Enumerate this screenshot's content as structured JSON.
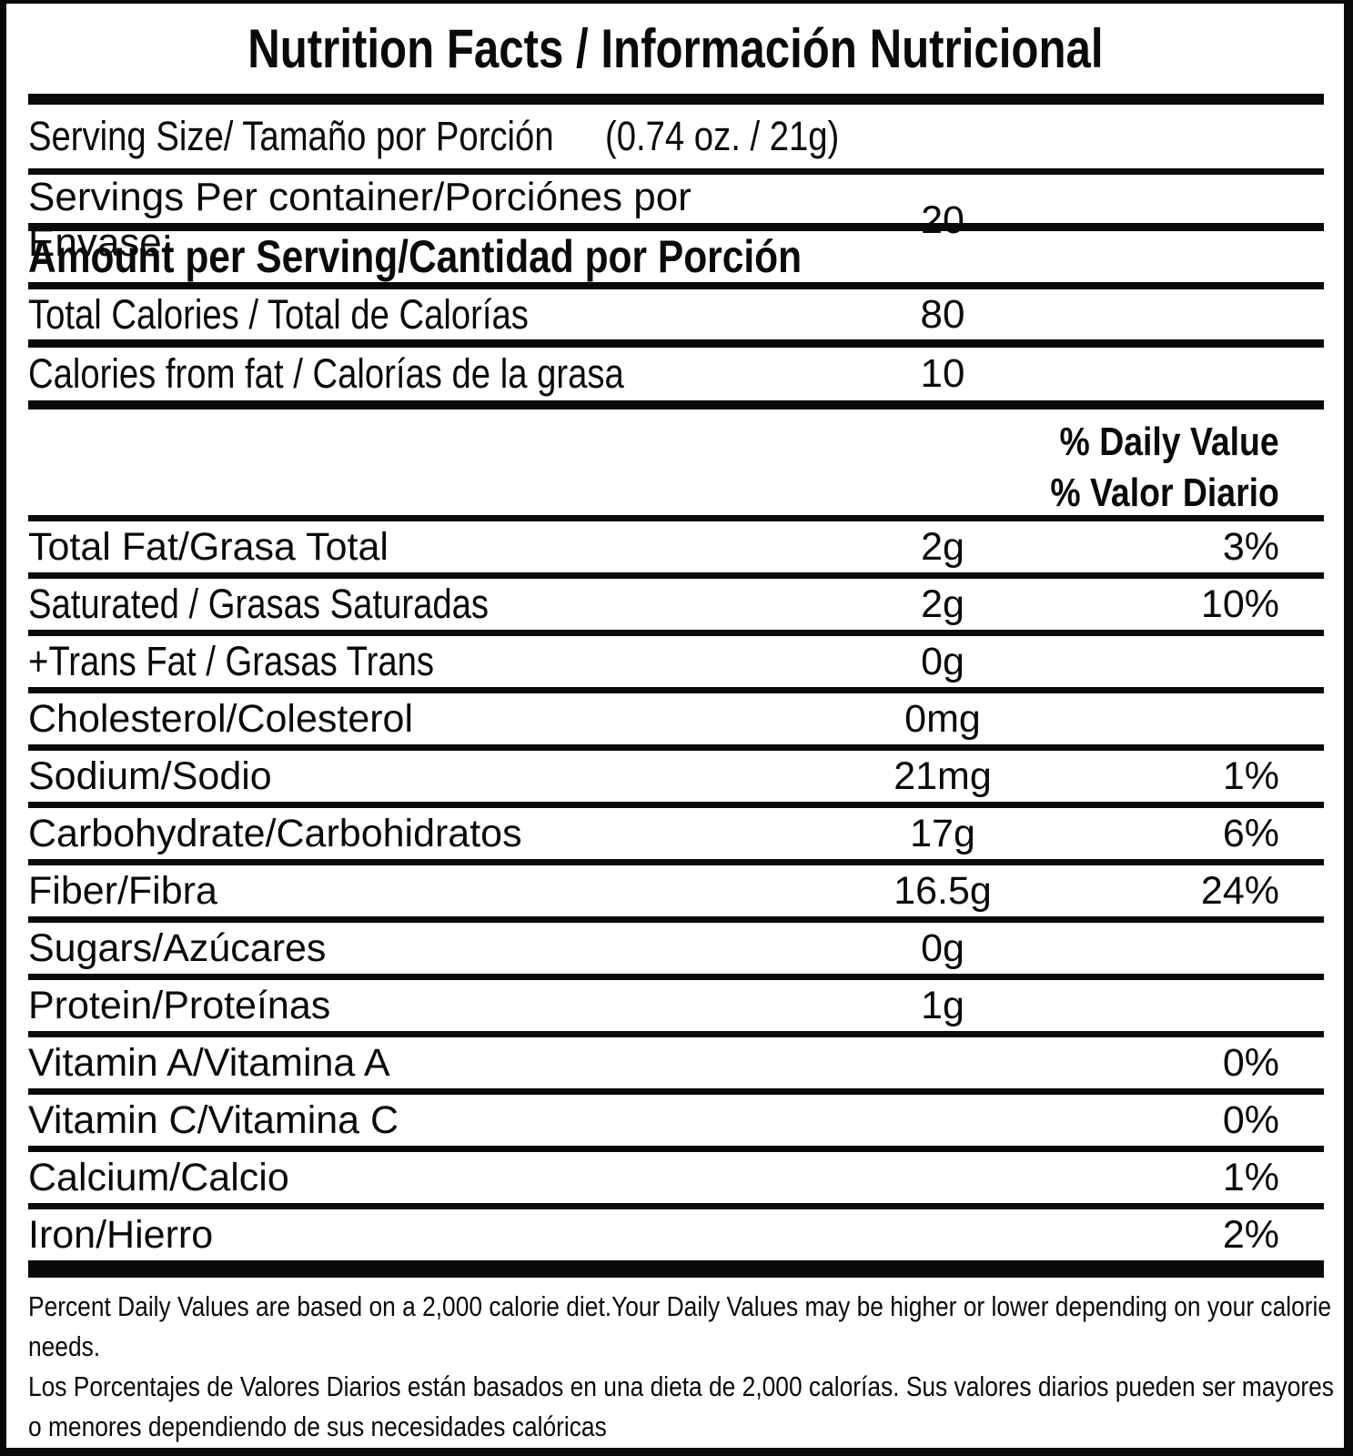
{
  "label": {
    "title": "Nutrition Facts / Información Nutricional",
    "serving_size": {
      "label": "Serving Size/ Tamaño por Porción",
      "value": "(0.74 oz. / 21g)"
    },
    "servings_per_container": {
      "label": "Servings Per container/Porciónes por Envase:",
      "value": "20"
    },
    "amount_heading": "Amount per Serving/Cantidad por Porción",
    "total_calories": {
      "label": "Total Calories / Total de Calorías",
      "value": "80"
    },
    "calories_from_fat": {
      "label": "Calories from fat / Calorías de la grasa",
      "value": "10"
    },
    "daily_value_header": {
      "en": "% Daily Value",
      "es": "% Valor Diario"
    },
    "nutrients": [
      {
        "label": "Total Fat/Grasa Total",
        "amount": "2g",
        "dv": "3%"
      },
      {
        "label": "Saturated / Grasas Saturadas",
        "amount": "2g",
        "dv": "10%"
      },
      {
        "label": "+Trans Fat / Grasas Trans",
        "amount": "0g",
        "dv": ""
      },
      {
        "label": "Cholesterol/Colesterol",
        "amount": "0mg",
        "dv": ""
      },
      {
        "label": "Sodium/Sodio",
        "amount": "21mg",
        "dv": "1%"
      },
      {
        "label": "Carbohydrate/Carbohidratos",
        "amount": "17g",
        "dv": "6%"
      },
      {
        "label": "Fiber/Fibra",
        "amount": "16.5g",
        "dv": "24%"
      },
      {
        "label": "Sugars/Azúcares",
        "amount": "0g",
        "dv": ""
      },
      {
        "label": "Protein/Proteínas",
        "amount": "1g",
        "dv": ""
      },
      {
        "label": "Vitamin A/Vitamina A",
        "amount": "",
        "dv": "0%"
      },
      {
        "label": "Vitamin C/Vitamina C",
        "amount": "",
        "dv": "0%"
      },
      {
        "label": "Calcium/Calcio",
        "amount": "",
        "dv": "1%"
      },
      {
        "label": "Iron/Hierro",
        "amount": "",
        "dv": "2%"
      }
    ],
    "footnotes": {
      "en": "Percent Daily Values are based on a 2,000 calorie diet.Your Daily Values may be higher or lower depending on your calorie needs.",
      "es": "Los Porcentajes de Valores Diarios están basados en una dieta de 2,000 calorías. Sus valores diarios pueden ser mayores o menores dependiendo de sus necesidades calóricas"
    },
    "colors": {
      "ink": "#0a0a0a",
      "background": "#ffffff"
    }
  }
}
